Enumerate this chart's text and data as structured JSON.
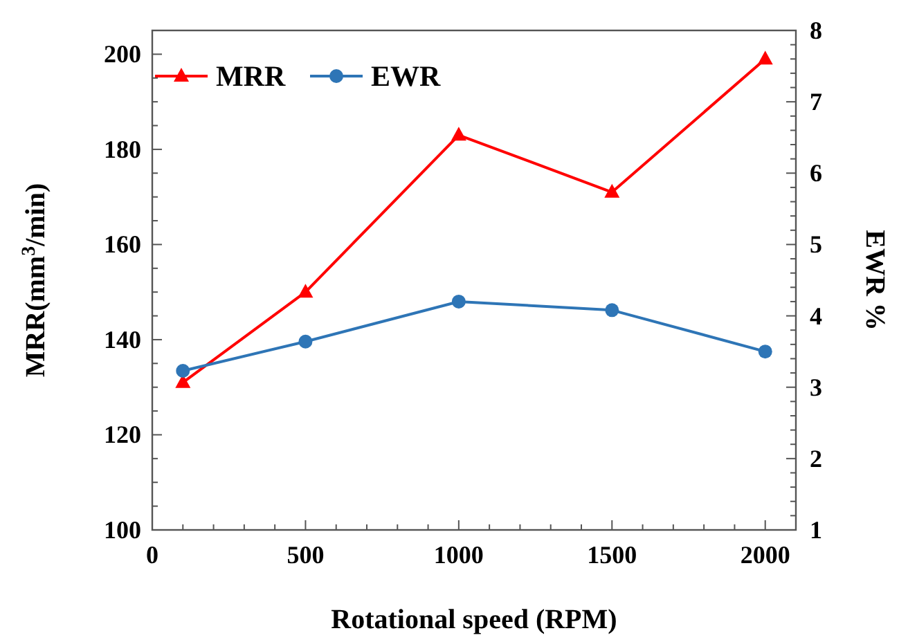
{
  "chart_data": {
    "type": "line",
    "xlabel": "Rotational speed (RPM)",
    "ylabel": "MRR(mm$^{3}$/min)",
    "y2label": "EWR %",
    "x": [
      100,
      500,
      1000,
      1500,
      2000
    ],
    "series": [
      {
        "name": "MRR",
        "color": "#ff0000",
        "marker": "triangle",
        "values": [
          131,
          150,
          183,
          171,
          199
        ]
      },
      {
        "name": "EWR",
        "color": "#2e75b6",
        "marker": "circle",
        "axis": "y2",
        "values": [
          3.23,
          3.64,
          4.2,
          4.08,
          3.5
        ]
      }
    ],
    "xlim": [
      0,
      2100
    ],
    "ylim": [
      100,
      205
    ],
    "y2lim": [
      1,
      8
    ],
    "xticks": [
      0,
      {
        "value": 100,
        "label": null
      },
      {
        "value": 200,
        "label": null
      },
      {
        "value": 300,
        "label": null
      },
      {
        "value": 400,
        "label": null
      },
      500,
      {
        "value": 600,
        "label": null
      },
      {
        "value": 700,
        "label": null
      },
      {
        "value": 800,
        "label": null
      },
      {
        "value": 900,
        "label": null
      },
      1000,
      {
        "value": 1100,
        "label": null
      },
      {
        "value": 1200,
        "label": null
      },
      {
        "value": 1300,
        "label": null
      },
      {
        "value": 1400,
        "label": null
      },
      1500,
      {
        "value": 1600,
        "label": null
      },
      {
        "value": 1700,
        "label": null
      },
      {
        "value": 1800,
        "label": null
      },
      {
        "value": 1900,
        "label": null
      },
      2000
    ],
    "yticks": [
      100,
      {
        "value": 105,
        "label": null
      },
      {
        "value": 110,
        "label": null
      },
      {
        "value": 115,
        "label": null
      },
      120,
      {
        "value": 125,
        "label": null
      },
      {
        "value": 130,
        "label": null
      },
      {
        "value": 135,
        "label": null
      },
      140,
      {
        "value": 145,
        "label": null
      },
      {
        "value": 150,
        "label": null
      },
      {
        "value": 155,
        "label": null
      },
      160,
      {
        "value": 165,
        "label": null
      },
      {
        "value": 170,
        "label": null
      },
      {
        "value": 175,
        "label": null
      },
      180,
      {
        "value": 185,
        "label": null
      },
      {
        "value": 190,
        "label": null
      },
      {
        "value": 195,
        "label": null
      },
      200
    ],
    "y2ticks": [
      1,
      {
        "value": 1.2,
        "label": null
      },
      {
        "value": 1.4,
        "label": null
      },
      {
        "value": 1.6,
        "label": null
      },
      {
        "value": 1.8,
        "label": null
      },
      2,
      {
        "value": 2.2,
        "label": null
      },
      {
        "value": 2.4,
        "label": null
      },
      {
        "value": 2.6,
        "label": null
      },
      {
        "value": 2.8,
        "label": null
      },
      3,
      {
        "value": 3.2,
        "label": null
      },
      {
        "value": 3.4,
        "label": null
      },
      {
        "value": 3.6,
        "label": null
      },
      {
        "value": 3.8,
        "label": null
      },
      4,
      {
        "value": 4.2,
        "label": null
      },
      {
        "value": 4.4,
        "label": null
      },
      {
        "value": 4.6,
        "label": null
      },
      {
        "value": 4.8,
        "label": null
      },
      5,
      {
        "value": 5.2,
        "label": null
      },
      {
        "value": 5.4,
        "label": null
      },
      {
        "value": 5.6,
        "label": null
      },
      {
        "value": 5.8,
        "label": null
      },
      6,
      {
        "value": 6.2,
        "label": null
      },
      {
        "value": 6.4,
        "label": null
      },
      {
        "value": 6.6,
        "label": null
      },
      {
        "value": 6.8,
        "label": null
      },
      7,
      {
        "value": 7.2,
        "label": null
      },
      {
        "value": 7.4,
        "label": null
      },
      {
        "value": 7.6,
        "label": null
      },
      {
        "value": 7.8,
        "label": null
      },
      8
    ],
    "grid": false,
    "legend": "top left",
    "line_style": "solid"
  }
}
